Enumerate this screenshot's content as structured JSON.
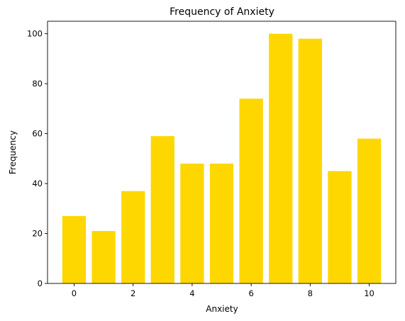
{
  "chart_data": {
    "type": "bar",
    "title": "Frequency of Anxiety",
    "xlabel": "Anxiety",
    "ylabel": "Frequency",
    "x": [
      0,
      1,
      2,
      3,
      4,
      5,
      6,
      7,
      8,
      9,
      10
    ],
    "values": [
      27,
      21,
      37,
      59,
      48,
      48,
      74,
      100,
      98,
      45,
      58
    ],
    "xlim": [
      -0.9,
      10.9
    ],
    "ylim": [
      0,
      105
    ],
    "xticks": [
      0,
      2,
      4,
      6,
      8,
      10
    ],
    "yticks": [
      0,
      20,
      40,
      60,
      80,
      100
    ],
    "bar_width": 0.8,
    "bar_color": "#FFD700",
    "grid": false,
    "legend": "none"
  }
}
